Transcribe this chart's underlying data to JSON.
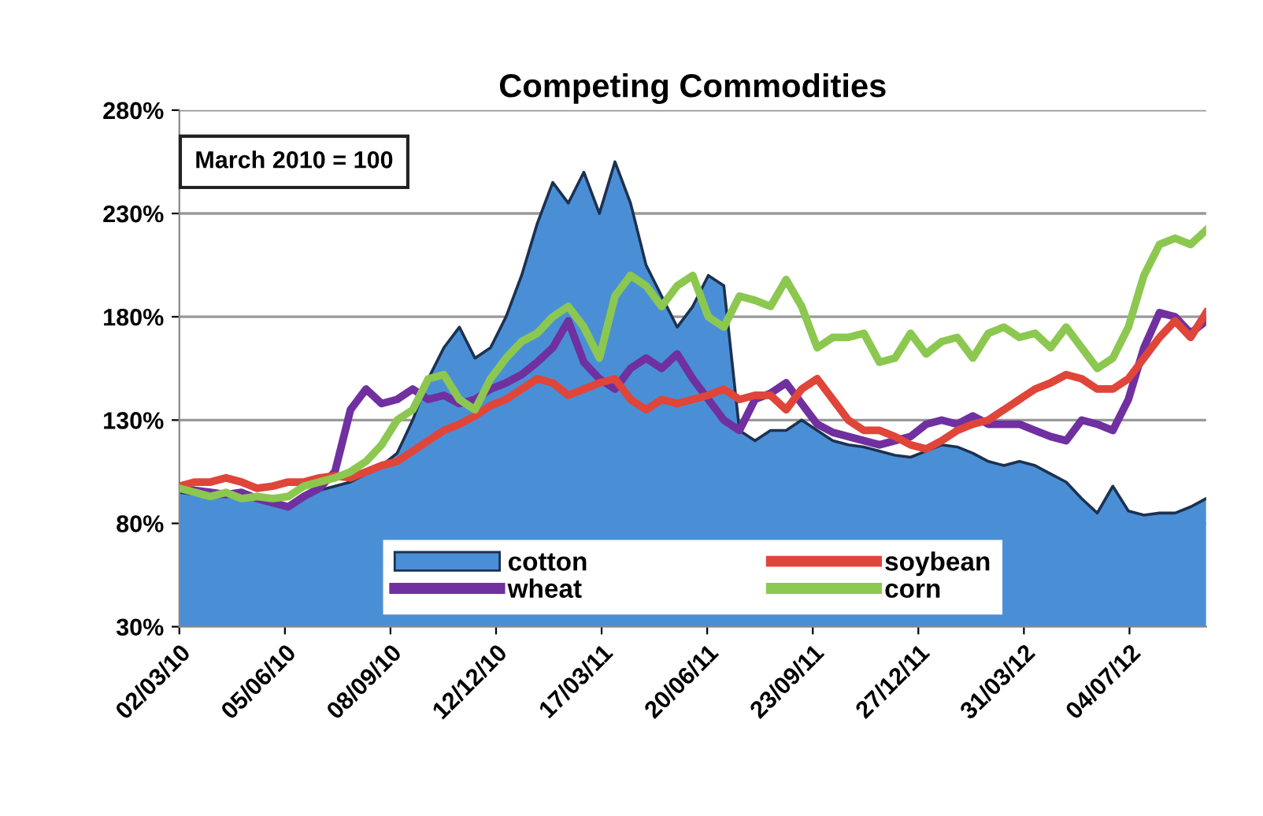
{
  "chart_data": {
    "type": "line",
    "title": "Competing Commodities",
    "annotations": [
      "March 2010 = 100"
    ],
    "x": [
      "2010-03-02",
      "2010-03-16",
      "2010-03-30",
      "2010-04-13",
      "2010-04-27",
      "2010-05-11",
      "2010-05-25",
      "2010-06-08",
      "2010-06-22",
      "2010-07-06",
      "2010-07-20",
      "2010-08-03",
      "2010-08-17",
      "2010-08-31",
      "2010-09-14",
      "2010-09-28",
      "2010-10-12",
      "2010-10-26",
      "2010-11-09",
      "2010-11-23",
      "2010-12-07",
      "2010-12-21",
      "2011-01-04",
      "2011-01-18",
      "2011-02-01",
      "2011-02-15",
      "2011-03-01",
      "2011-03-15",
      "2011-03-29",
      "2011-04-12",
      "2011-04-26",
      "2011-05-10",
      "2011-05-24",
      "2011-06-07",
      "2011-06-21",
      "2011-07-05",
      "2011-07-19",
      "2011-08-02",
      "2011-08-16",
      "2011-08-30",
      "2011-09-13",
      "2011-09-27",
      "2011-10-11",
      "2011-10-25",
      "2011-11-08",
      "2011-11-22",
      "2011-12-06",
      "2011-12-20",
      "2012-01-03",
      "2012-01-17",
      "2012-01-31",
      "2012-02-14",
      "2012-02-28",
      "2012-03-13",
      "2012-03-27",
      "2012-04-10",
      "2012-04-24",
      "2012-05-08",
      "2012-05-22",
      "2012-06-05",
      "2012-06-19",
      "2012-07-03",
      "2012-07-17",
      "2012-07-31",
      "2012-08-14",
      "2012-08-28",
      "2012-09-11"
    ],
    "series": [
      {
        "name": "cotton",
        "type": "area",
        "color": "#4a8fd6",
        "values": [
          95,
          94,
          93,
          93,
          94,
          92,
          90,
          88,
          92,
          96,
          98,
          100,
          104,
          108,
          114,
          130,
          150,
          165,
          175,
          160,
          165,
          180,
          200,
          225,
          245,
          235,
          250,
          230,
          255,
          235,
          205,
          190,
          175,
          185,
          200,
          195,
          125,
          120,
          125,
          125,
          130,
          125,
          120,
          118,
          117,
          115,
          113,
          112,
          115,
          118,
          117,
          114,
          110,
          108,
          110,
          108,
          104,
          100,
          92,
          85,
          98,
          86,
          84,
          85,
          85,
          88,
          92
        ]
      },
      {
        "name": "wheat",
        "color": "#7030a0",
        "values": [
          97,
          96,
          95,
          94,
          95,
          92,
          90,
          88,
          93,
          97,
          105,
          135,
          145,
          138,
          140,
          145,
          140,
          142,
          138,
          140,
          145,
          148,
          152,
          158,
          165,
          178,
          158,
          150,
          145,
          155,
          160,
          155,
          162,
          150,
          140,
          130,
          125,
          140,
          143,
          148,
          138,
          128,
          124,
          122,
          120,
          118,
          120,
          122,
          128,
          130,
          128,
          132,
          128,
          128,
          128,
          125,
          122,
          120,
          130,
          128,
          125,
          140,
          165,
          182,
          180,
          172,
          178
        ]
      },
      {
        "name": "soybean",
        "color": "#e0453a",
        "values": [
          98,
          100,
          100,
          102,
          100,
          97,
          98,
          100,
          100,
          102,
          103,
          102,
          105,
          108,
          110,
          115,
          120,
          125,
          128,
          132,
          137,
          140,
          145,
          150,
          148,
          142,
          145,
          148,
          150,
          140,
          135,
          140,
          138,
          140,
          142,
          145,
          140,
          142,
          142,
          135,
          145,
          150,
          140,
          130,
          125,
          125,
          122,
          118,
          116,
          120,
          125,
          128,
          130,
          135,
          140,
          145,
          148,
          152,
          150,
          145,
          145,
          150,
          160,
          170,
          178,
          170,
          182
        ]
      },
      {
        "name": "corn",
        "color": "#8cc850",
        "values": [
          97,
          95,
          93,
          95,
          92,
          93,
          92,
          93,
          98,
          100,
          102,
          105,
          110,
          118,
          130,
          135,
          150,
          152,
          140,
          135,
          150,
          160,
          168,
          172,
          180,
          185,
          175,
          160,
          190,
          200,
          195,
          185,
          195,
          200,
          180,
          175,
          190,
          188,
          185,
          198,
          185,
          165,
          170,
          170,
          172,
          158,
          160,
          172,
          162,
          168,
          170,
          160,
          172,
          175,
          170,
          172,
          165,
          175,
          165,
          155,
          160,
          175,
          200,
          215,
          218,
          215,
          222
        ]
      }
    ],
    "ylim": [
      30,
      280
    ],
    "yticks": [
      {
        "value": 30,
        "label": "30%"
      },
      {
        "value": 80,
        "label": "80%"
      },
      {
        "value": 130,
        "label": "130%"
      },
      {
        "value": 180,
        "label": "180%"
      },
      {
        "value": 230,
        "label": "230%"
      },
      {
        "value": 280,
        "label": "280%"
      }
    ],
    "xlim": [
      "2010-03-02",
      "2012-09-11"
    ],
    "xticks": [
      {
        "value": "2010-03-02",
        "label": "02/03/10"
      },
      {
        "value": "2010-06-05",
        "label": "05/06/10"
      },
      {
        "value": "2010-09-08",
        "label": "08/09/10"
      },
      {
        "value": "2010-12-12",
        "label": "12/12/10"
      },
      {
        "value": "2011-03-17",
        "label": "17/03/11"
      },
      {
        "value": "2011-06-20",
        "label": "20/06/11"
      },
      {
        "value": "2011-09-23",
        "label": "23/09/11"
      },
      {
        "value": "2011-12-27",
        "label": "27/12/11"
      },
      {
        "value": "2012-03-31",
        "label": "31/03/12"
      },
      {
        "value": "2012-07-04",
        "label": "04/07/12"
      }
    ],
    "grid": "y",
    "legend": "bottom",
    "marker": "none",
    "line_style": "solid"
  }
}
